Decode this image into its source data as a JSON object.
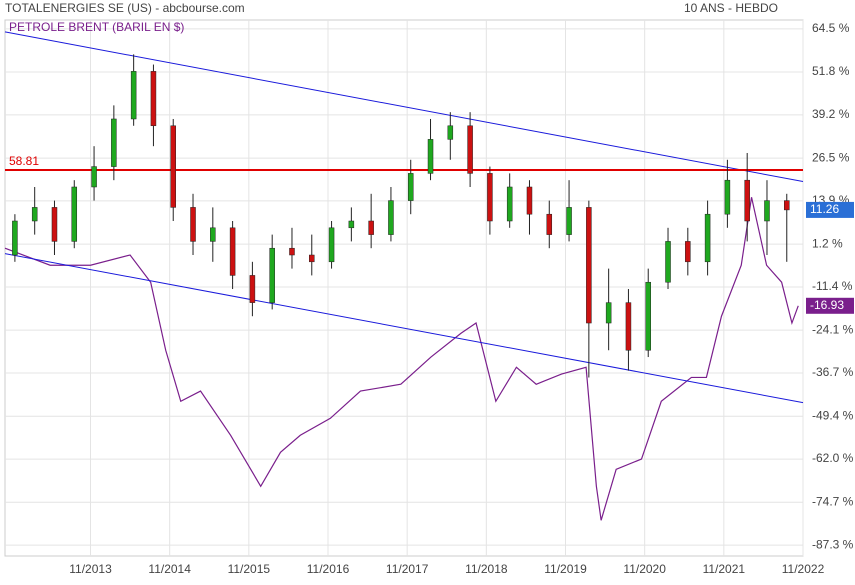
{
  "chart_data": {
    "type": "candlestick",
    "title": "TOTALENERGIES SE (US) - abcbourse.com",
    "subtitle": "10 ANS - HEBDO",
    "overlay_label": "PETROLE BRENT (BARIL EN $)",
    "xlim": [
      2012.75,
      2022.83
    ],
    "xticks": [
      {
        "value": 2013.83,
        "label": "11/2013"
      },
      {
        "value": 2014.83,
        "label": "11/2014"
      },
      {
        "value": 2015.83,
        "label": "11/2015"
      },
      {
        "value": 2016.83,
        "label": "11/2016"
      },
      {
        "value": 2017.83,
        "label": "11/2017"
      },
      {
        "value": 2018.83,
        "label": "11/2018"
      },
      {
        "value": 2019.83,
        "label": "11/2019"
      },
      {
        "value": 2020.83,
        "label": "11/2020"
      },
      {
        "value": 2021.83,
        "label": "11/2021"
      },
      {
        "value": 2022.83,
        "label": "11/2022"
      }
    ],
    "ylim": [
      -90.5,
      67.1
    ],
    "yticks": [
      {
        "value": 64.5,
        "label": "64.5 %"
      },
      {
        "value": 51.8,
        "label": "51.8 %"
      },
      {
        "value": 39.2,
        "label": "39.2 %"
      },
      {
        "value": 26.5,
        "label": "26.5 %"
      },
      {
        "value": 13.9,
        "label": "13.9 %"
      },
      {
        "value": 1.2,
        "label": "1.2 %"
      },
      {
        "value": -11.4,
        "label": "-11.4 %"
      },
      {
        "value": -24.1,
        "label": "-24.1 %"
      },
      {
        "value": -36.7,
        "label": "-36.7 %"
      },
      {
        "value": -49.4,
        "label": "-49.4 %"
      },
      {
        "value": -62.0,
        "label": "-62.0 %"
      },
      {
        "value": -74.7,
        "label": "-74.7 %"
      },
      {
        "value": -87.3,
        "label": "-87.3 %"
      }
    ],
    "grid": true,
    "up_color": "#1fa81f",
    "down_color": "#cc1111",
    "candle_color_badge": "#2a6fd6",
    "candles": {
      "x": [
        2012.875,
        2013.125,
        2013.375,
        2013.625,
        2013.875,
        2014.125,
        2014.375,
        2014.625,
        2014.875,
        2015.125,
        2015.375,
        2015.625,
        2015.875,
        2016.125,
        2016.375,
        2016.625,
        2016.875,
        2017.125,
        2017.375,
        2017.625,
        2017.875,
        2018.125,
        2018.375,
        2018.625,
        2018.875,
        2019.125,
        2019.375,
        2019.625,
        2019.875,
        2020.125,
        2020.375,
        2020.625,
        2020.875,
        2021.125,
        2021.375,
        2021.625,
        2021.875,
        2022.125,
        2022.375,
        2022.625
      ],
      "open": [
        -2,
        8,
        12,
        2,
        18,
        24,
        38,
        52,
        36,
        12,
        2,
        6,
        -8,
        -16,
        0,
        -2,
        -4,
        6,
        8,
        4,
        14,
        22,
        32,
        36,
        22,
        8,
        18,
        10,
        4,
        12,
        -22,
        -16,
        -30,
        -10,
        2,
        -4,
        10,
        20,
        8,
        14
      ],
      "high": [
        10,
        18,
        14,
        20,
        30,
        42,
        57,
        54,
        38,
        16,
        12,
        8,
        -4,
        4,
        6,
        4,
        8,
        12,
        16,
        18,
        26,
        38,
        40,
        40,
        24,
        22,
        20,
        14,
        20,
        14,
        -6,
        -12,
        -6,
        6,
        6,
        14,
        26,
        28,
        20,
        16
      ],
      "low": [
        -4,
        4,
        -2,
        0,
        14,
        20,
        36,
        30,
        8,
        -2,
        -4,
        -12,
        -20,
        -18,
        -6,
        -8,
        -6,
        2,
        0,
        2,
        10,
        20,
        26,
        18,
        4,
        6,
        4,
        0,
        2,
        -38,
        -30,
        -36,
        -32,
        -12,
        -8,
        -8,
        6,
        2,
        -2,
        -4
      ],
      "close": [
        8,
        12,
        2,
        18,
        24,
        38,
        52,
        36,
        12,
        2,
        6,
        -8,
        -16,
        0,
        -2,
        -4,
        6,
        8,
        4,
        14,
        22,
        32,
        36,
        22,
        8,
        18,
        10,
        4,
        12,
        -22,
        -16,
        -30,
        -10,
        2,
        -4,
        10,
        20,
        8,
        14,
        11.26
      ]
    },
    "overlay": {
      "name": "PETROLE BRENT (BARIL EN $)",
      "color": "#7a1f8c",
      "x": [
        2012.75,
        2013.32,
        2013.83,
        2014.33,
        2014.59,
        2014.78,
        2014.97,
        2015.22,
        2015.6,
        2015.98,
        2016.23,
        2016.48,
        2016.86,
        2017.24,
        2017.75,
        2018.13,
        2018.51,
        2018.7,
        2018.95,
        2019.21,
        2019.46,
        2019.78,
        2020.09,
        2020.22,
        2020.28,
        2020.47,
        2020.79,
        2021.04,
        2021.42,
        2021.61,
        2021.8,
        2022.05,
        2022.18,
        2022.37,
        2022.56,
        2022.69,
        2022.77
      ],
      "values": [
        0,
        -5,
        -5,
        -2,
        -10,
        -30,
        -45,
        -42,
        -55,
        -70,
        -60,
        -55,
        -50,
        -42,
        -40,
        -32,
        -25,
        -22,
        -45,
        -35,
        -40,
        -37,
        -35,
        -70,
        -80,
        -65,
        -62,
        -45,
        -38,
        -38,
        -20,
        -5,
        15,
        -5,
        -10,
        -22,
        -16.93
      ]
    },
    "hline": {
      "value": 23.0,
      "label": "58.81",
      "color": "#e00000"
    },
    "trendlines": {
      "color": "#1a1adb",
      "lines": [
        {
          "x": [
            2012.75,
            2022.83
          ],
          "y": [
            63.6,
            19.6
          ]
        },
        {
          "x": [
            2012.75,
            2022.83
          ],
          "y": [
            -1.6,
            -45.4
          ]
        }
      ]
    }
  }
}
